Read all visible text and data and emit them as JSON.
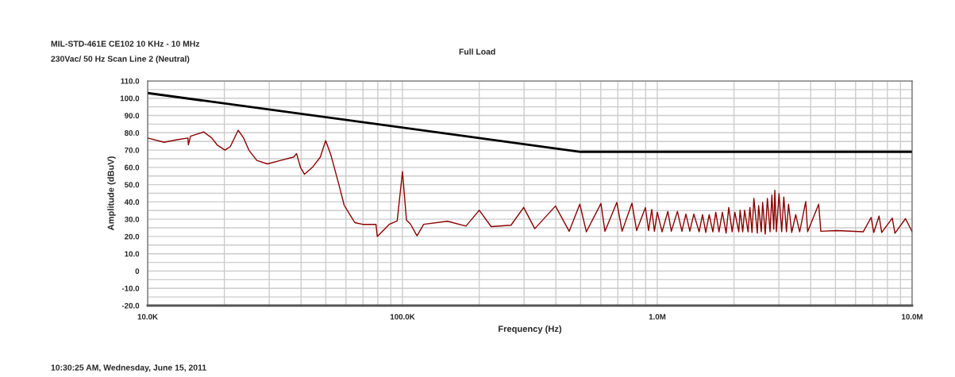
{
  "chart_data": {
    "type": "line",
    "title": "MIL-STD-461E CE102 10 KHz - 10 MHz",
    "subtitle": "230Vac/ 50 Hz Scan Line 2 (Neutral)",
    "xlabel": "Frequency (Hz)",
    "ylabel": "Amplitude (dBuV)",
    "annotations": [
      "Full Load",
      "10:30:25 AM, Wednesday, June 15, 2011"
    ],
    "log": "x",
    "grid": true,
    "marker": "none",
    "line_style": "solid",
    "xlim": [
      10000,
      10000000
    ],
    "xticks": [
      {
        "value": 10000,
        "label": "10.0K"
      },
      {
        "value": 20000,
        "label": null
      },
      {
        "value": 30000,
        "label": null
      },
      {
        "value": 40000,
        "label": null
      },
      {
        "value": 50000,
        "label": null
      },
      {
        "value": 60000,
        "label": null
      },
      {
        "value": 70000,
        "label": null
      },
      {
        "value": 80000,
        "label": null
      },
      {
        "value": 90000,
        "label": null
      },
      {
        "value": 100000,
        "label": "100.0K"
      },
      {
        "value": 200000,
        "label": null
      },
      {
        "value": 300000,
        "label": null
      },
      {
        "value": 400000,
        "label": null
      },
      {
        "value": 500000,
        "label": null
      },
      {
        "value": 600000,
        "label": null
      },
      {
        "value": 700000,
        "label": null
      },
      {
        "value": 800000,
        "label": null
      },
      {
        "value": 900000,
        "label": null
      },
      {
        "value": 1000000,
        "label": "1.0M"
      },
      {
        "value": 2000000,
        "label": null
      },
      {
        "value": 3000000,
        "label": null
      },
      {
        "value": 4000000,
        "label": null
      },
      {
        "value": 5000000,
        "label": null
      },
      {
        "value": 6000000,
        "label": null
      },
      {
        "value": 7000000,
        "label": null
      },
      {
        "value": 8000000,
        "label": null
      },
      {
        "value": 9000000,
        "label": null
      },
      {
        "value": 10000000,
        "label": "10.0M"
      }
    ],
    "ylim": [
      -20,
      110
    ],
    "yticks": [
      {
        "value": -20,
        "label": "-20.0"
      },
      {
        "value": -15,
        "label": null
      },
      {
        "value": -10,
        "label": "-10.0"
      },
      {
        "value": -5,
        "label": null
      },
      0,
      {
        "value": 5,
        "label": null
      },
      {
        "value": 10,
        "label": "10.0"
      },
      {
        "value": 15,
        "label": null
      },
      {
        "value": 20,
        "label": "20.0"
      },
      {
        "value": 25,
        "label": null
      },
      {
        "value": 30,
        "label": "30.0"
      },
      {
        "value": 35,
        "label": null
      },
      {
        "value": 40,
        "label": "40.0"
      },
      {
        "value": 45,
        "label": null
      },
      {
        "value": 50,
        "label": "50.0"
      },
      {
        "value": 55,
        "label": null
      },
      {
        "value": 60,
        "label": "60.0"
      },
      {
        "value": 65,
        "label": null
      },
      {
        "value": 70,
        "label": "70.0"
      },
      {
        "value": 75,
        "label": null
      },
      {
        "value": 80,
        "label": "80.0"
      },
      {
        "value": 85,
        "label": null
      },
      {
        "value": 90,
        "label": "90.0"
      },
      {
        "value": 95,
        "label": null
      },
      {
        "value": 100,
        "label": "100.0"
      },
      {
        "value": 105,
        "label": null
      },
      {
        "value": 110,
        "label": "110.0"
      }
    ],
    "series": [
      {
        "color": "#000000",
        "x": [
          10000,
          500000,
          10000000
        ],
        "values": [
          103,
          69,
          69
        ]
      },
      {
        "color": "#8b0000",
        "x": [
          10000,
          11600,
          13070,
          14390,
          14450,
          14730,
          16600,
          17850,
          18730,
          20120,
          21100,
          22670,
          23790,
          24950,
          26810,
          29500,
          33240,
          37480,
          38390,
          39790,
          41250,
          44330,
          47620,
          49940,
          52400,
          56300,
          59070,
          61960,
          65020,
          69850,
          78700,
          79650,
          88700,
          95330,
          100000,
          103660,
          107440,
          114060,
          121090,
          150180,
          177510,
          200100,
          222800,
          266600,
          298950,
          330500,
          398400,
          451000,
          496400,
          526900,
          600900,
          623000,
          693700,
          727700,
          795100,
          829800,
          898200,
          924000,
          951000,
          974100,
          1000000,
          1044000,
          1100000,
          1135000,
          1199000,
          1249000,
          1295000,
          1342000,
          1391000,
          1459000,
          1505000,
          1549000,
          1598000,
          1652000,
          1696000,
          1746000,
          1801000,
          1862000,
          1907000,
          1967000,
          2015000,
          2088000,
          2113000,
          2164000,
          2201000,
          2271000,
          2309000,
          2353000,
          2393000,
          2469000,
          2498000,
          2559000,
          2590000,
          2652000,
          2704000,
          2770000,
          2816000,
          2864000,
          2892000,
          2933000,
          3004000,
          3077000,
          3136000,
          3212000,
          3273000,
          3369000,
          3492000,
          3620000,
          3824000,
          3889000,
          4299000,
          4382000,
          5058000,
          6427000,
          6902000,
          7069000,
          7416000,
          7596000,
          8359000,
          8561000,
          9419000,
          10000000
        ],
        "values": [
          77,
          74.5,
          76,
          77,
          73,
          78,
          80.5,
          77,
          73,
          70,
          72,
          81.5,
          77,
          70,
          64,
          62,
          64,
          66,
          68,
          60,
          56,
          60,
          66,
          75.5,
          67,
          50,
          38,
          33,
          28,
          27,
          27,
          20,
          27,
          29,
          57.5,
          29.5,
          27.2,
          20.4,
          27,
          28.8,
          26,
          35.2,
          25.7,
          26.5,
          36.8,
          24.5,
          37.6,
          23,
          38.7,
          22.7,
          39.1,
          23,
          39.7,
          23,
          39.3,
          23.4,
          36.7,
          23.4,
          35.6,
          23,
          34,
          22.7,
          34.5,
          23,
          34.5,
          23,
          33,
          23,
          33,
          22.7,
          32.6,
          22.3,
          32.6,
          22.7,
          34,
          22.7,
          34,
          21.9,
          36.8,
          22.7,
          34,
          22.7,
          35.2,
          22.7,
          35.2,
          22.7,
          36.8,
          22.3,
          42,
          21.9,
          37.9,
          22.7,
          39.7,
          21.4,
          42,
          22.7,
          44,
          24.2,
          46.7,
          22.7,
          44.8,
          22.7,
          42.8,
          22.7,
          38.7,
          22.3,
          32.6,
          22.7,
          40.2,
          22.7,
          38.7,
          23,
          23.4,
          22.7,
          31,
          22.3,
          31.8,
          22.3,
          30.6,
          21.9,
          30.3,
          22.7
        ]
      }
    ]
  }
}
